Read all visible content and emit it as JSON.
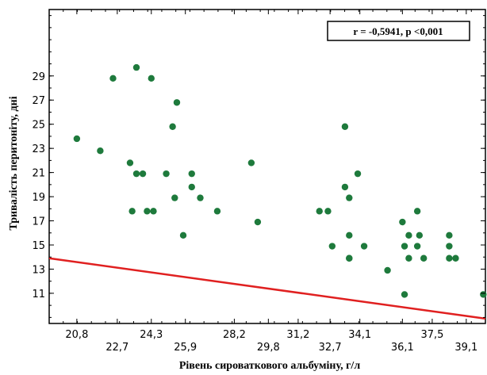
{
  "chart_data": {
    "type": "scatter",
    "title": "",
    "xlabel": "Рівень сироваткового альбуміну, г/л",
    "ylabel": "Тривалість перитоніту, дні",
    "annotation": "r = -0,5941, p <0,001",
    "xlim": [
      19.5,
      40.0
    ],
    "ylim": [
      8.5,
      34.5
    ],
    "x_ticks": [
      20.8,
      22.7,
      24.3,
      25.9,
      28.2,
      29.8,
      31.2,
      32.7,
      34.1,
      36.1,
      37.5,
      39.1
    ],
    "x_tick_labels": [
      "20,8",
      "22,7",
      "24,3",
      "25,9",
      "28,2",
      "29,8",
      "31,2",
      "32,7",
      "34,1",
      "36,1",
      "37,5",
      "39,1"
    ],
    "y_ticks": [
      11,
      13,
      15,
      17,
      19,
      21,
      23,
      25,
      27,
      29
    ],
    "y_tick_labels": [
      "11",
      "13",
      "15",
      "17",
      "19",
      "21",
      "23",
      "25",
      "27",
      "29"
    ],
    "grid": false,
    "marker_color": "#1e7a3c",
    "line_color": "#e02020",
    "regression_line": {
      "x": [
        19.5,
        40.0
      ],
      "y": [
        13.9,
        8.9
      ]
    },
    "points": [
      {
        "x": 20.8,
        "y": 23.8
      },
      {
        "x": 21.9,
        "y": 22.8
      },
      {
        "x": 22.5,
        "y": 28.8
      },
      {
        "x": 23.3,
        "y": 21.8
      },
      {
        "x": 23.4,
        "y": 17.8
      },
      {
        "x": 23.6,
        "y": 20.9
      },
      {
        "x": 23.6,
        "y": 29.7
      },
      {
        "x": 23.9,
        "y": 20.9
      },
      {
        "x": 24.1,
        "y": 17.8
      },
      {
        "x": 24.3,
        "y": 28.8
      },
      {
        "x": 24.4,
        "y": 17.8
      },
      {
        "x": 25.0,
        "y": 20.9
      },
      {
        "x": 25.3,
        "y": 24.8
      },
      {
        "x": 25.4,
        "y": 18.9
      },
      {
        "x": 25.5,
        "y": 26.8
      },
      {
        "x": 25.8,
        "y": 15.8
      },
      {
        "x": 26.2,
        "y": 20.9
      },
      {
        "x": 26.2,
        "y": 19.8
      },
      {
        "x": 26.6,
        "y": 18.9
      },
      {
        "x": 27.4,
        "y": 17.8
      },
      {
        "x": 29.0,
        "y": 21.8
      },
      {
        "x": 29.3,
        "y": 16.9
      },
      {
        "x": 32.2,
        "y": 17.8
      },
      {
        "x": 32.6,
        "y": 17.8
      },
      {
        "x": 32.8,
        "y": 14.9
      },
      {
        "x": 33.4,
        "y": 24.8
      },
      {
        "x": 33.4,
        "y": 19.8
      },
      {
        "x": 33.6,
        "y": 18.9
      },
      {
        "x": 33.6,
        "y": 15.8
      },
      {
        "x": 33.6,
        "y": 13.9
      },
      {
        "x": 33.6,
        "y": 13.9
      },
      {
        "x": 34.0,
        "y": 20.9
      },
      {
        "x": 34.3,
        "y": 14.9
      },
      {
        "x": 35.4,
        "y": 12.9
      },
      {
        "x": 36.1,
        "y": 16.9
      },
      {
        "x": 36.2,
        "y": 14.9
      },
      {
        "x": 36.2,
        "y": 10.9
      },
      {
        "x": 36.4,
        "y": 15.8
      },
      {
        "x": 36.4,
        "y": 13.9
      },
      {
        "x": 36.8,
        "y": 17.8
      },
      {
        "x": 36.8,
        "y": 14.9
      },
      {
        "x": 36.9,
        "y": 15.8
      },
      {
        "x": 37.1,
        "y": 13.9
      },
      {
        "x": 38.3,
        "y": 15.8
      },
      {
        "x": 38.3,
        "y": 14.9
      },
      {
        "x": 38.3,
        "y": 13.9
      },
      {
        "x": 38.6,
        "y": 13.9
      },
      {
        "x": 39.9,
        "y": 10.9
      }
    ]
  }
}
